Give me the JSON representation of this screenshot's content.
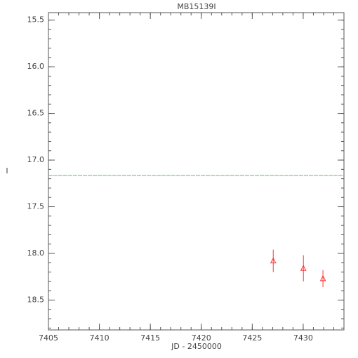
{
  "chart_data": {
    "type": "scatter",
    "title": "MB15139I",
    "xlabel": "JD - 2450000",
    "ylabel": "I",
    "xlim": [
      7405,
      7434
    ],
    "ylim": [
      15.42,
      18.82
    ],
    "y_inverted": true,
    "xticks": [
      7405,
      7410,
      7415,
      7420,
      7425,
      7430
    ],
    "yticks": [
      15.5,
      {
        "value": 16,
        "label": "16.0"
      },
      16.5,
      {
        "value": 17,
        "label": "17.0"
      },
      17.5,
      {
        "value": 18,
        "label": "18.0"
      },
      18.5
    ],
    "x_minor_step": 1,
    "y_minor_step": 0.1,
    "hline": {
      "value": 17.165,
      "color": "#33dd33"
    },
    "series": [
      {
        "color": "#ff3333",
        "marker": "triangle",
        "x": [
          7427.06,
          7430.02,
          7431.94
        ],
        "values": [
          18.08,
          18.16,
          18.27
        ],
        "errors": [
          0.12,
          0.14,
          0.09
        ]
      }
    ]
  }
}
